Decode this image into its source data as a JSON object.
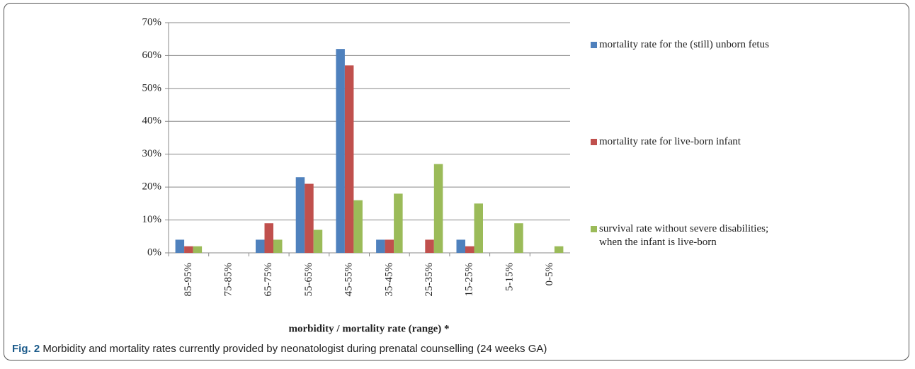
{
  "chart_data": {
    "type": "bar",
    "xlabel": "morbidity / mortality rate (range) *",
    "categories": [
      "85-95%",
      "75-85%",
      "65-75%",
      "55-65%",
      "45-55%",
      "35-45%",
      "25-35%",
      "15-25%",
      "5-15%",
      "0-5%"
    ],
    "series": [
      {
        "name": "mortality rate for the (still) unborn fetus",
        "color": "#4f81bd",
        "values": [
          4,
          0,
          4,
          23,
          62,
          4,
          0,
          4,
          0,
          0
        ]
      },
      {
        "name": "mortality rate for live-born infant",
        "color": "#c0504d",
        "values": [
          2,
          0,
          9,
          21,
          57,
          4,
          4,
          2,
          0,
          0
        ]
      },
      {
        "name": "survival rate without severe disabilities; when the infant is live-born",
        "color": "#9bbb59",
        "values": [
          2,
          0,
          4,
          7,
          16,
          18,
          27,
          15,
          9,
          2
        ]
      }
    ],
    "ylim": [
      0,
      70
    ],
    "yticks": [
      {
        "value": 0,
        "label": "0%"
      },
      {
        "value": 10,
        "label": "10%"
      },
      {
        "value": 20,
        "label": "20%"
      },
      {
        "value": 30,
        "label": "30%"
      },
      {
        "value": 40,
        "label": "40%"
      },
      {
        "value": 50,
        "label": "50%"
      },
      {
        "value": 60,
        "label": "60%"
      },
      {
        "value": 70,
        "label": "70%"
      }
    ],
    "grid": true,
    "legend": "right",
    "caption": {
      "label": "Fig. 2",
      "text": "Morbidity and mortality rates currently provided by neonatologist during prenatal counselling (24 weeks GA)"
    }
  }
}
